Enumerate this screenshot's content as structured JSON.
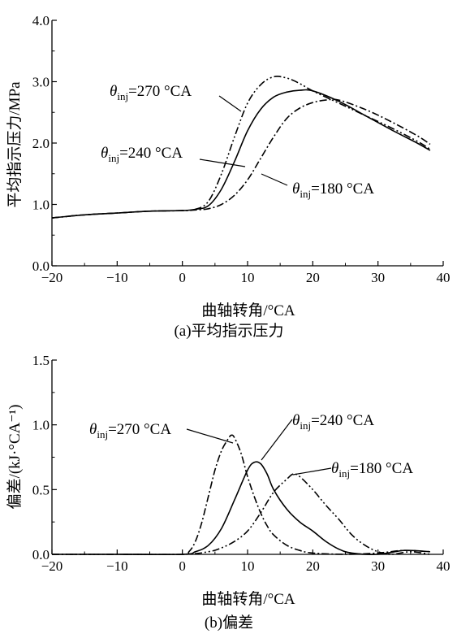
{
  "charts": [
    {
      "caption": "(a)平均指示压力",
      "chart_data": {
        "type": "line",
        "xlabel": "曲轴转角/°CA",
        "ylabel": "平均指示压力/MPa",
        "xlim": [
          -20,
          40
        ],
        "ylim": [
          0.0,
          4.0
        ],
        "xticks": [
          "−20",
          "−10",
          "0",
          "10",
          "20",
          "30",
          "40"
        ],
        "yticks": [
          "0.0",
          "1.0",
          "2.0",
          "3.0",
          "4.0"
        ],
        "grid": false,
        "series": [
          {
            "name": "θinj=270 °CA",
            "style": "dash-dot-dot",
            "points": [
              [
                -20,
                0.78
              ],
              [
                -15,
                0.83
              ],
              [
                -10,
                0.86
              ],
              [
                -5,
                0.89
              ],
              [
                0,
                0.9
              ],
              [
                2,
                0.92
              ],
              [
                4,
                1.05
              ],
              [
                6,
                1.5
              ],
              [
                8,
                2.1
              ],
              [
                10,
                2.65
              ],
              [
                12,
                2.95
              ],
              [
                14,
                3.08
              ],
              [
                16,
                3.06
              ],
              [
                18,
                2.97
              ],
              [
                20,
                2.85
              ],
              [
                24,
                2.65
              ],
              [
                28,
                2.45
              ],
              [
                32,
                2.25
              ],
              [
                36,
                2.03
              ],
              [
                38,
                1.9
              ]
            ]
          },
          {
            "name": "θinj=240 °CA",
            "style": "solid",
            "points": [
              [
                -20,
                0.78
              ],
              [
                -15,
                0.83
              ],
              [
                -10,
                0.86
              ],
              [
                -5,
                0.89
              ],
              [
                0,
                0.9
              ],
              [
                2,
                0.92
              ],
              [
                4,
                0.98
              ],
              [
                6,
                1.25
              ],
              [
                8,
                1.7
              ],
              [
                10,
                2.2
              ],
              [
                12,
                2.55
              ],
              [
                14,
                2.75
              ],
              [
                16,
                2.83
              ],
              [
                18,
                2.86
              ],
              [
                20,
                2.85
              ],
              [
                24,
                2.68
              ],
              [
                28,
                2.45
              ],
              [
                32,
                2.22
              ],
              [
                36,
                2.0
              ],
              [
                38,
                1.88
              ]
            ]
          },
          {
            "name": "θinj=180 °CA",
            "style": "dash-dot",
            "points": [
              [
                -20,
                0.78
              ],
              [
                -15,
                0.83
              ],
              [
                -10,
                0.86
              ],
              [
                -5,
                0.89
              ],
              [
                0,
                0.9
              ],
              [
                2,
                0.91
              ],
              [
                4,
                0.93
              ],
              [
                6,
                1.0
              ],
              [
                8,
                1.15
              ],
              [
                10,
                1.4
              ],
              [
                12,
                1.75
              ],
              [
                14,
                2.1
              ],
              [
                16,
                2.4
              ],
              [
                18,
                2.57
              ],
              [
                20,
                2.66
              ],
              [
                22,
                2.7
              ],
              [
                24,
                2.7
              ],
              [
                28,
                2.55
              ],
              [
                32,
                2.35
              ],
              [
                36,
                2.12
              ],
              [
                38,
                1.98
              ]
            ]
          }
        ],
        "annotations": [
          {
            "text": "θinj=270 °CA",
            "main": "θ",
            "sub": "inj",
            "rest": "=270 °CA",
            "at": [
              -8,
              3.0
            ]
          },
          {
            "text": "θinj=240 °CA",
            "main": "θ",
            "sub": "inj",
            "rest": "=240 °CA",
            "at": [
              -9,
              2.0
            ]
          },
          {
            "text": "θinj=180 °CA",
            "main": "θ",
            "sub": "inj",
            "rest": "=180 °CA",
            "at": [
              28,
              1.2
            ]
          }
        ]
      }
    },
    {
      "caption": "(b)偏差",
      "chart_data": {
        "type": "line",
        "xlabel": "曲轴转角/°CA",
        "ylabel": "偏差/(kJ·°CA⁻¹)",
        "xlim": [
          -20,
          40
        ],
        "ylim": [
          0.0,
          1.5
        ],
        "xticks": [
          "−20",
          "−10",
          "0",
          "10",
          "20",
          "30",
          "40"
        ],
        "yticks": [
          "0.0",
          "0.5",
          "1.0",
          "1.5"
        ],
        "grid": false,
        "series": [
          {
            "name": "θinj=270 °CA",
            "style": "dash-dot",
            "points": [
              [
                -20,
                0.0
              ],
              [
                -10,
                0.0
              ],
              [
                0,
                0.0
              ],
              [
                1,
                0.02
              ],
              [
                2,
                0.1
              ],
              [
                3,
                0.25
              ],
              [
                4,
                0.45
              ],
              [
                5,
                0.65
              ],
              [
                6,
                0.8
              ],
              [
                7,
                0.89
              ],
              [
                7.5,
                0.92
              ],
              [
                8,
                0.9
              ],
              [
                9,
                0.78
              ],
              [
                10,
                0.6
              ],
              [
                11,
                0.45
              ],
              [
                12,
                0.32
              ],
              [
                13,
                0.22
              ],
              [
                14,
                0.15
              ],
              [
                16,
                0.07
              ],
              [
                18,
                0.03
              ],
              [
                20,
                0.01
              ],
              [
                25,
                0.0
              ],
              [
                30,
                0.01
              ],
              [
                34,
                0.03
              ],
              [
                38,
                0.02
              ]
            ]
          },
          {
            "name": "θinj=240 °CA",
            "style": "solid",
            "points": [
              [
                -20,
                0.0
              ],
              [
                -10,
                0.0
              ],
              [
                0,
                0.0
              ],
              [
                2,
                0.02
              ],
              [
                4,
                0.07
              ],
              [
                6,
                0.2
              ],
              [
                8,
                0.42
              ],
              [
                10,
                0.65
              ],
              [
                11,
                0.71
              ],
              [
                12,
                0.7
              ],
              [
                13,
                0.62
              ],
              [
                14,
                0.5
              ],
              [
                16,
                0.35
              ],
              [
                18,
                0.25
              ],
              [
                20,
                0.18
              ],
              [
                22,
                0.1
              ],
              [
                24,
                0.04
              ],
              [
                26,
                0.01
              ],
              [
                30,
                0.0
              ],
              [
                34,
                0.03
              ],
              [
                38,
                0.02
              ]
            ]
          },
          {
            "name": "θinj=180 °CA",
            "style": "dash-dot-dot",
            "points": [
              [
                -20,
                0.0
              ],
              [
                -10,
                0.0
              ],
              [
                0,
                0.0
              ],
              [
                4,
                0.02
              ],
              [
                6,
                0.05
              ],
              [
                8,
                0.1
              ],
              [
                10,
                0.18
              ],
              [
                12,
                0.32
              ],
              [
                14,
                0.48
              ],
              [
                16,
                0.58
              ],
              [
                17,
                0.62
              ],
              [
                18,
                0.6
              ],
              [
                20,
                0.5
              ],
              [
                22,
                0.38
              ],
              [
                24,
                0.27
              ],
              [
                26,
                0.15
              ],
              [
                28,
                0.07
              ],
              [
                30,
                0.02
              ],
              [
                32,
                0.0
              ],
              [
                35,
                0.02
              ],
              [
                38,
                0.0
              ]
            ]
          }
        ],
        "annotations": [
          {
            "text": "θinj=270 °CA",
            "main": "θ",
            "sub": "inj",
            "rest": "=270 °CA",
            "at": [
              -13.5,
              0.9
            ]
          },
          {
            "text": "θinj=240 °CA",
            "main": "θ",
            "sub": "inj",
            "rest": "=240 °CA",
            "at": [
              17,
              1.12
            ]
          },
          {
            "text": "θinj=180 °CA",
            "main": "θ",
            "sub": "inj",
            "rest": "=180 °CA",
            "at": [
              23,
              0.58
            ]
          }
        ]
      }
    }
  ]
}
